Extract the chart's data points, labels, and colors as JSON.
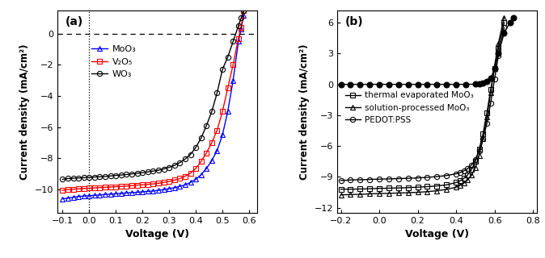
{
  "panel_a": {
    "label": "(a)",
    "xlabel": "Voltage (V)",
    "ylabel": "Current density (mA/cm²)",
    "xlim": [
      -0.12,
      0.63
    ],
    "ylim": [
      -11.5,
      1.5
    ],
    "yticks": [
      0,
      -2,
      -4,
      -6,
      -8,
      -10
    ],
    "xticks": [
      -0.1,
      0.0,
      0.1,
      0.2,
      0.3,
      0.4,
      0.5,
      0.6
    ],
    "series": [
      {
        "label": "MoO₃",
        "color": "#0000ff",
        "marker": "^",
        "fillstyle": "none",
        "x": [
          -0.1,
          -0.08,
          -0.06,
          -0.04,
          -0.02,
          0.0,
          0.02,
          0.04,
          0.06,
          0.08,
          0.1,
          0.12,
          0.14,
          0.16,
          0.18,
          0.2,
          0.22,
          0.24,
          0.26,
          0.28,
          0.3,
          0.32,
          0.34,
          0.36,
          0.38,
          0.4,
          0.42,
          0.44,
          0.46,
          0.48,
          0.5,
          0.52,
          0.54,
          0.56,
          0.57,
          0.58
        ],
        "y": [
          -10.6,
          -10.55,
          -10.5,
          -10.45,
          -10.42,
          -10.4,
          -10.38,
          -10.35,
          -10.32,
          -10.3,
          -10.28,
          -10.25,
          -10.22,
          -10.2,
          -10.18,
          -10.15,
          -10.12,
          -10.1,
          -10.05,
          -10.0,
          -9.95,
          -9.88,
          -9.8,
          -9.7,
          -9.55,
          -9.35,
          -9.05,
          -8.65,
          -8.15,
          -7.5,
          -6.5,
          -5.0,
          -3.0,
          -0.5,
          0.3,
          1.2
        ]
      },
      {
        "label": "V₂O₅",
        "color": "#ff0000",
        "marker": "s",
        "fillstyle": "none",
        "x": [
          -0.1,
          -0.08,
          -0.06,
          -0.04,
          -0.02,
          0.0,
          0.02,
          0.04,
          0.06,
          0.08,
          0.1,
          0.12,
          0.14,
          0.16,
          0.18,
          0.2,
          0.22,
          0.24,
          0.26,
          0.28,
          0.3,
          0.32,
          0.34,
          0.36,
          0.38,
          0.4,
          0.42,
          0.44,
          0.46,
          0.48,
          0.5,
          0.52,
          0.54,
          0.56,
          0.57,
          0.58
        ],
        "y": [
          -10.05,
          -10.0,
          -9.98,
          -9.96,
          -9.94,
          -9.92,
          -9.9,
          -9.88,
          -9.86,
          -9.84,
          -9.82,
          -9.8,
          -9.78,
          -9.75,
          -9.72,
          -9.7,
          -9.67,
          -9.64,
          -9.6,
          -9.55,
          -9.48,
          -9.4,
          -9.3,
          -9.15,
          -8.95,
          -8.65,
          -8.2,
          -7.65,
          -7.0,
          -6.2,
          -5.0,
          -3.5,
          -2.0,
          -0.3,
          0.4,
          1.5
        ]
      },
      {
        "label": "WO₃",
        "color": "#000000",
        "marker": "o",
        "fillstyle": "none",
        "x": [
          -0.1,
          -0.08,
          -0.06,
          -0.04,
          -0.02,
          0.0,
          0.02,
          0.04,
          0.06,
          0.08,
          0.1,
          0.12,
          0.14,
          0.16,
          0.18,
          0.2,
          0.22,
          0.24,
          0.26,
          0.28,
          0.3,
          0.32,
          0.34,
          0.36,
          0.38,
          0.4,
          0.42,
          0.44,
          0.46,
          0.48,
          0.5,
          0.52,
          0.54,
          0.56,
          0.57,
          0.58
        ],
        "y": [
          -9.35,
          -9.3,
          -9.28,
          -9.26,
          -9.24,
          -9.22,
          -9.2,
          -9.18,
          -9.16,
          -9.13,
          -9.1,
          -9.07,
          -9.04,
          -9.0,
          -8.96,
          -8.92,
          -8.87,
          -8.82,
          -8.76,
          -8.68,
          -8.58,
          -8.45,
          -8.28,
          -8.05,
          -7.75,
          -7.3,
          -6.7,
          -5.9,
          -5.0,
          -3.8,
          -2.3,
          -1.5,
          -0.5,
          0.5,
          1.0,
          1.5
        ]
      }
    ]
  },
  "panel_b": {
    "label": "(b)",
    "xlabel": "Voltage (V)",
    "ylabel": "Current density (mA/cm²)",
    "xlim": [
      -0.22,
      0.82
    ],
    "ylim": [
      -12.5,
      7.2
    ],
    "yticks": [
      6,
      3,
      0,
      -3,
      -6,
      -9,
      -12
    ],
    "xticks": [
      -0.2,
      0.0,
      0.2,
      0.4,
      0.6,
      0.8
    ],
    "dark_x": [
      -0.2,
      -0.15,
      -0.1,
      -0.05,
      0.0,
      0.05,
      0.1,
      0.15,
      0.2,
      0.25,
      0.3,
      0.35,
      0.4,
      0.45,
      0.5,
      0.52,
      0.54,
      0.56,
      0.58,
      0.6,
      0.62,
      0.65,
      0.68,
      0.7
    ],
    "dark_y": [
      0.0,
      0.0,
      0.0,
      0.0,
      0.0,
      0.0,
      0.0,
      0.0,
      0.0,
      0.0,
      0.0,
      0.0,
      0.0,
      0.0,
      0.02,
      0.05,
      0.1,
      0.25,
      0.6,
      1.5,
      3.0,
      5.0,
      6.0,
      6.5
    ],
    "series": [
      {
        "label": "thermal evaporated MoO₃",
        "color": "#000000",
        "marker": "s",
        "fillstyle": "none",
        "x": [
          -0.2,
          -0.15,
          -0.1,
          -0.05,
          0.0,
          0.05,
          0.1,
          0.15,
          0.2,
          0.25,
          0.3,
          0.35,
          0.4,
          0.42,
          0.44,
          0.46,
          0.48,
          0.5,
          0.52,
          0.54,
          0.56,
          0.58,
          0.6,
          0.62,
          0.65
        ],
        "y": [
          -10.2,
          -10.2,
          -10.18,
          -10.15,
          -10.12,
          -10.1,
          -10.08,
          -10.05,
          -10.0,
          -9.95,
          -9.88,
          -9.78,
          -9.55,
          -9.4,
          -9.15,
          -8.8,
          -8.3,
          -7.5,
          -6.3,
          -4.8,
          -2.8,
          -0.5,
          1.5,
          3.5,
          6.0
        ]
      },
      {
        "label": "solution-processed MoO₃",
        "color": "#000000",
        "marker": "^",
        "fillstyle": "none",
        "x": [
          -0.2,
          -0.15,
          -0.1,
          -0.05,
          0.0,
          0.05,
          0.1,
          0.15,
          0.2,
          0.25,
          0.3,
          0.35,
          0.4,
          0.42,
          0.44,
          0.46,
          0.48,
          0.5,
          0.52,
          0.54,
          0.56,
          0.58,
          0.6,
          0.62,
          0.65
        ],
        "y": [
          -10.75,
          -10.72,
          -10.7,
          -10.65,
          -10.62,
          -10.6,
          -10.57,
          -10.54,
          -10.5,
          -10.44,
          -10.35,
          -10.22,
          -10.0,
          -9.82,
          -9.6,
          -9.3,
          -8.85,
          -8.1,
          -6.9,
          -5.3,
          -3.2,
          -0.8,
          1.8,
          4.0,
          6.5
        ]
      },
      {
        "label": "PEDOT:PSS",
        "color": "#000000",
        "marker": "o",
        "fillstyle": "none",
        "x": [
          -0.2,
          -0.15,
          -0.1,
          -0.05,
          0.0,
          0.05,
          0.1,
          0.15,
          0.2,
          0.25,
          0.3,
          0.35,
          0.4,
          0.42,
          0.44,
          0.46,
          0.48,
          0.5,
          0.52,
          0.54,
          0.56,
          0.58,
          0.6,
          0.62,
          0.65
        ],
        "y": [
          -9.35,
          -9.3,
          -9.28,
          -9.25,
          -9.22,
          -9.2,
          -9.17,
          -9.14,
          -9.1,
          -9.05,
          -8.97,
          -8.87,
          -8.7,
          -8.58,
          -8.42,
          -8.2,
          -7.85,
          -7.3,
          -6.5,
          -5.3,
          -3.8,
          -1.8,
          0.5,
          2.8,
          5.5
        ]
      }
    ]
  }
}
